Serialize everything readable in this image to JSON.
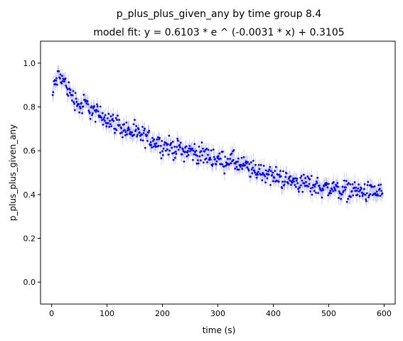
{
  "chart_data": {
    "type": "scatter",
    "title": "p_plus_plus_given_any by time group 8.4",
    "subtitle": "model fit: y = 0.6103 * e ^ (-0.0031 * x) + 0.3105",
    "xlabel": "time (s)",
    "ylabel": "p_plus_plus_given_any",
    "xlim": [
      -20,
      620
    ],
    "ylim": [
      -0.1,
      1.1
    ],
    "x_ticks": [
      0,
      100,
      200,
      300,
      400,
      500,
      600
    ],
    "y_ticks": [
      0.0,
      0.2,
      0.4,
      0.6,
      0.8,
      1.0
    ],
    "y_tick_labels": [
      "0.0",
      "0.2",
      "0.4",
      "0.6",
      "0.8",
      "1.0"
    ],
    "grid": false,
    "model": {
      "a": 0.6103,
      "b": -0.0031,
      "c": 0.3105
    },
    "point_color": "#0000ff",
    "errorbar_color": "#9999ee",
    "x_step": 1,
    "x_start": 2,
    "x_end": 597,
    "series": [
      {
        "x_anchor": [
          2,
          5,
          10,
          14,
          18,
          22,
          26,
          30,
          35,
          40,
          45,
          50,
          55,
          60,
          70,
          80,
          90,
          100,
          110,
          120,
          130,
          140,
          150,
          160,
          170,
          180,
          190,
          200,
          210,
          220,
          230,
          240,
          250,
          260,
          270,
          280,
          290,
          300,
          310,
          320,
          330,
          340,
          350,
          360,
          370,
          380,
          390,
          400,
          410,
          420,
          430,
          440,
          450,
          460,
          470,
          480,
          490,
          500,
          510,
          520,
          530,
          540,
          550,
          560,
          570,
          580,
          590,
          597
        ],
        "y_anchor": [
          0.85,
          0.9,
          0.93,
          0.94,
          0.93,
          0.92,
          0.9,
          0.88,
          0.86,
          0.84,
          0.83,
          0.8,
          0.8,
          0.82,
          0.79,
          0.77,
          0.76,
          0.75,
          0.73,
          0.72,
          0.7,
          0.69,
          0.68,
          0.67,
          0.66,
          0.65,
          0.64,
          0.62,
          0.62,
          0.61,
          0.61,
          0.6,
          0.6,
          0.59,
          0.58,
          0.58,
          0.57,
          0.56,
          0.55,
          0.56,
          0.55,
          0.53,
          0.53,
          0.51,
          0.51,
          0.5,
          0.5,
          0.48,
          0.48,
          0.47,
          0.46,
          0.46,
          0.45,
          0.45,
          0.44,
          0.44,
          0.43,
          0.43,
          0.43,
          0.42,
          0.42,
          0.42,
          0.42,
          0.41,
          0.41,
          0.41,
          0.41,
          0.41
        ],
        "jitter": 0.022,
        "error": 0.03
      }
    ]
  }
}
